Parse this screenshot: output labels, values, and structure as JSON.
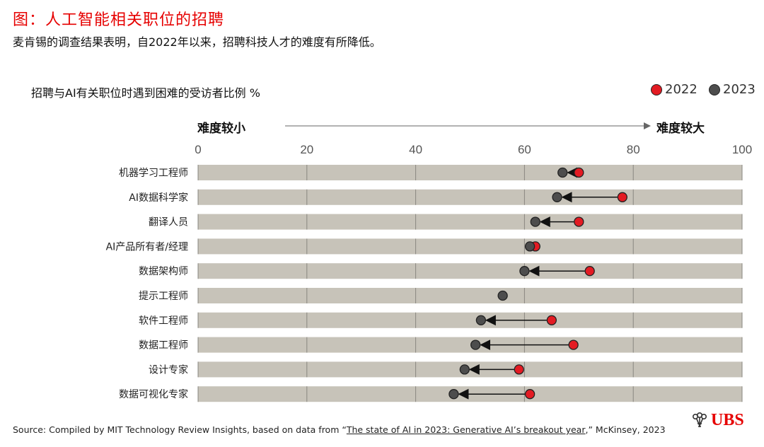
{
  "header": {
    "title": "图：人工智能相关职位的招聘",
    "subtitle": "麦肯锡的调查结果表明，自2022年以来，招聘科技人才的难度有所降低。"
  },
  "chart_data": {
    "type": "dumbbell",
    "title": "招聘与AI有关职位时遇到困难的受访者比例 %",
    "direction_left": "难度较小",
    "direction_right": "难度较大",
    "xlim": [
      0,
      100
    ],
    "xticks": [
      0,
      20,
      40,
      60,
      80,
      100
    ],
    "grid": true,
    "legend_position": "top-right",
    "categories": [
      "机器学习工程师",
      "AI数据科学家",
      "翻译人员",
      "AI产品所有者/经理",
      "数据架构师",
      "提示工程师",
      "软件工程师",
      "数据工程师",
      "设计专家",
      "数据可视化专家"
    ],
    "series": [
      {
        "name": "2022",
        "color": "#e31b23",
        "values": [
          70,
          78,
          70,
          62,
          72,
          null,
          65,
          69,
          59,
          61
        ]
      },
      {
        "name": "2023",
        "color": "#4d4d4d",
        "values": [
          67,
          66,
          62,
          61,
          60,
          56,
          52,
          51,
          49,
          47
        ]
      }
    ]
  },
  "colors": {
    "accent": "#e60000",
    "bar_bg": "#c7c3b9",
    "series_2022": "#e31b23",
    "series_2023": "#4d4d4d"
  },
  "footer": {
    "source_prefix": "Source: Compiled by MIT Technology Review Insights, based on data from “",
    "source_link": "The state of AI in 2023: Generative AI’s breakout year",
    "source_suffix": ",” McKinsey, 2023",
    "logo_text": "UBS",
    "logo_icon": "ubs-keys-icon"
  }
}
